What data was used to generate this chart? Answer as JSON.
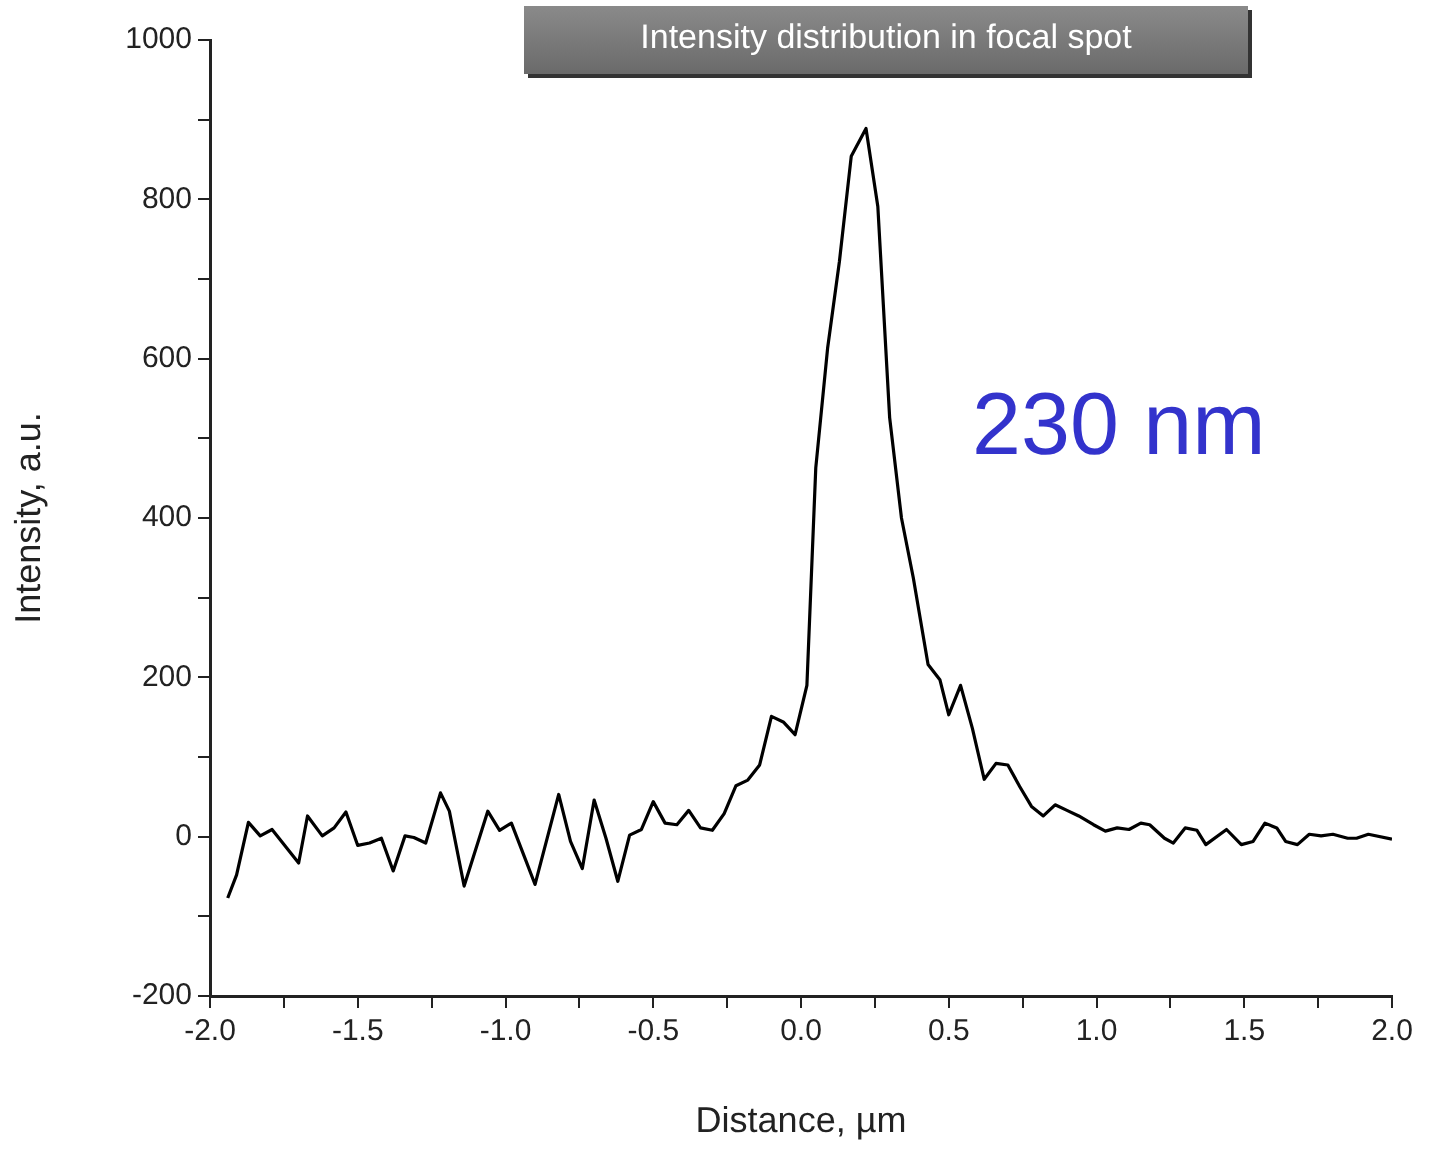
{
  "chart_data": {
    "type": "line",
    "title": "Intensity distribution in focal spot",
    "xlabel": "Distance, µm",
    "ylabel": "Intensity, a.u.",
    "annotations": [
      "230 nm"
    ],
    "xlim": [
      -2.0,
      2.0
    ],
    "ylim": [
      -200,
      1000
    ],
    "xticks": [
      {
        "value": -2,
        "label": "-2.0"
      },
      {
        "value": -1.75,
        "label": null
      },
      {
        "value": -1.5,
        "label": "-1.5"
      },
      {
        "value": -1.25,
        "label": null
      },
      {
        "value": -1,
        "label": "-1.0"
      },
      {
        "value": -0.75,
        "label": null
      },
      {
        "value": -0.5,
        "label": "-0.5"
      },
      {
        "value": -0.25,
        "label": null
      },
      {
        "value": 0,
        "label": "0.0"
      },
      {
        "value": 0.25,
        "label": null
      },
      {
        "value": 0.5,
        "label": "0.5"
      },
      {
        "value": 0.75,
        "label": null
      },
      {
        "value": 1,
        "label": "1.0"
      },
      {
        "value": 1.25,
        "label": null
      },
      {
        "value": 1.5,
        "label": "1.5"
      },
      {
        "value": 1.75,
        "label": null
      },
      {
        "value": 2,
        "label": "2.0"
      }
    ],
    "yticks": [
      -200,
      {
        "value": -100,
        "label": null
      },
      0,
      {
        "value": 100,
        "label": null
      },
      200,
      {
        "value": 300,
        "label": null
      },
      400,
      {
        "value": 500,
        "label": null
      },
      600,
      {
        "value": 700,
        "label": null
      },
      800,
      {
        "value": 900,
        "label": null
      },
      1000
    ],
    "grid": false,
    "legend": false,
    "marker": "none",
    "line_style": "solid",
    "series": [
      {
        "color": "#000000",
        "x": [
          -1.94,
          -1.91,
          -1.87,
          -1.83,
          -1.79,
          -1.7,
          -1.67,
          -1.62,
          -1.58,
          -1.54,
          -1.5,
          -1.46,
          -1.42,
          -1.38,
          -1.34,
          -1.31,
          -1.27,
          -1.22,
          -1.19,
          -1.14,
          -1.06,
          -1.02,
          -0.98,
          -0.93,
          -0.9,
          -0.82,
          -0.78,
          -0.74,
          -0.7,
          -0.66,
          -0.62,
          -0.58,
          -0.54,
          -0.5,
          -0.46,
          -0.42,
          -0.38,
          -0.34,
          -0.3,
          -0.26,
          -0.22,
          -0.18,
          -0.14,
          -0.1,
          -0.06,
          -0.02,
          0.02,
          0.05,
          0.09,
          0.13,
          0.17,
          0.22,
          0.26,
          0.3,
          0.34,
          0.38,
          0.43,
          0.47,
          0.5,
          0.54,
          0.58,
          0.62,
          0.66,
          0.7,
          0.74,
          0.78,
          0.82,
          0.86,
          0.9,
          0.94,
          0.99,
          1.03,
          1.07,
          1.11,
          1.15,
          1.18,
          1.23,
          1.26,
          1.3,
          1.34,
          1.37,
          1.44,
          1.49,
          1.53,
          1.57,
          1.61,
          1.64,
          1.68,
          1.72,
          1.76,
          1.8,
          1.85,
          1.88,
          1.92,
          2.0
        ],
        "values": [
          -77,
          -48,
          18,
          1,
          9,
          -33,
          26,
          1,
          11,
          31,
          -11,
          -8,
          -2,
          -43,
          1,
          -1,
          -8,
          55,
          32,
          -62,
          32,
          8,
          17,
          -31,
          -60,
          53,
          -6,
          -40,
          46,
          -2,
          -56,
          2,
          9,
          44,
          17,
          15,
          33,
          11,
          8,
          29,
          64,
          71,
          90,
          151,
          144,
          128,
          190,
          463,
          613,
          722,
          854,
          889,
          791,
          526,
          400,
          325,
          216,
          197,
          153,
          190,
          136,
          72,
          92,
          90,
          63,
          38,
          26,
          40,
          33,
          26,
          15,
          7,
          11,
          9,
          17,
          15,
          -2,
          -8,
          11,
          8,
          -10,
          9,
          -10,
          -6,
          17,
          11,
          -6,
          -10,
          3,
          1,
          3,
          -2,
          -2,
          3,
          -3
        ]
      }
    ]
  }
}
